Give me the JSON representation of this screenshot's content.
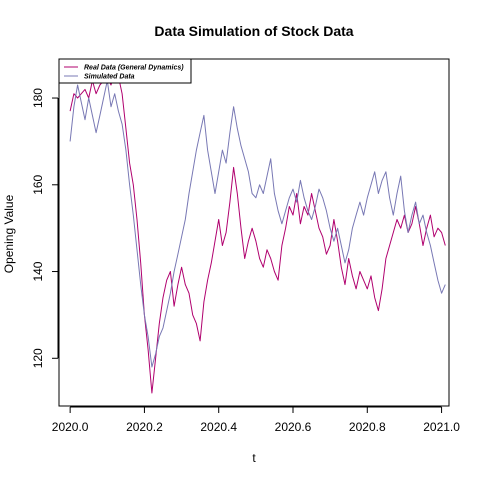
{
  "chart_data": {
    "type": "line",
    "title": "Data Simulation of Stock Data",
    "xlabel": "t",
    "ylabel": "Opening Value",
    "xlim": [
      2019.97,
      2021.02
    ],
    "ylim": [
      109,
      189
    ],
    "xticks": [
      {
        "value": 2020.0,
        "label": "2020.0"
      },
      {
        "value": 2020.2,
        "label": "2020.2"
      },
      {
        "value": 2020.4,
        "label": "2020.4"
      },
      {
        "value": 2020.6,
        "label": "2020.6"
      },
      {
        "value": 2020.8,
        "label": "2020.8"
      },
      {
        "value": 2021.0,
        "label": "2021.0"
      }
    ],
    "yticks": [
      {
        "value": 120,
        "label": "120"
      },
      {
        "value": 140,
        "label": "140"
      },
      {
        "value": 160,
        "label": "160"
      },
      {
        "value": 180,
        "label": "180"
      }
    ],
    "grid": false,
    "legend_position": "top-left",
    "series": [
      {
        "name": "Real Data (General Dynamics)",
        "color": "#b0006e",
        "points": [
          [
            2020.0,
            177
          ],
          [
            2020.01,
            181
          ],
          [
            2020.02,
            180
          ],
          [
            2020.03,
            181
          ],
          [
            2020.04,
            182
          ],
          [
            2020.05,
            180
          ],
          [
            2020.06,
            184
          ],
          [
            2020.07,
            181
          ],
          [
            2020.08,
            183
          ],
          [
            2020.09,
            184
          ],
          [
            2020.1,
            185
          ],
          [
            2020.11,
            183
          ],
          [
            2020.12,
            186
          ],
          [
            2020.13,
            185
          ],
          [
            2020.14,
            181
          ],
          [
            2020.15,
            173
          ],
          [
            2020.16,
            165
          ],
          [
            2020.17,
            160
          ],
          [
            2020.18,
            152
          ],
          [
            2020.19,
            142
          ],
          [
            2020.2,
            130
          ],
          [
            2020.21,
            122
          ],
          [
            2020.22,
            112
          ],
          [
            2020.23,
            120
          ],
          [
            2020.24,
            128
          ],
          [
            2020.25,
            134
          ],
          [
            2020.26,
            138
          ],
          [
            2020.27,
            140
          ],
          [
            2020.28,
            132
          ],
          [
            2020.29,
            137
          ],
          [
            2020.3,
            141
          ],
          [
            2020.31,
            137
          ],
          [
            2020.32,
            135
          ],
          [
            2020.33,
            130
          ],
          [
            2020.34,
            128
          ],
          [
            2020.35,
            124
          ],
          [
            2020.36,
            133
          ],
          [
            2020.37,
            138
          ],
          [
            2020.38,
            142
          ],
          [
            2020.39,
            147
          ],
          [
            2020.4,
            152
          ],
          [
            2020.41,
            146
          ],
          [
            2020.42,
            149
          ],
          [
            2020.43,
            156
          ],
          [
            2020.44,
            164
          ],
          [
            2020.45,
            158
          ],
          [
            2020.46,
            150
          ],
          [
            2020.47,
            143
          ],
          [
            2020.48,
            147
          ],
          [
            2020.49,
            150
          ],
          [
            2020.5,
            147
          ],
          [
            2020.51,
            143
          ],
          [
            2020.52,
            141
          ],
          [
            2020.53,
            145
          ],
          [
            2020.54,
            143
          ],
          [
            2020.55,
            140
          ],
          [
            2020.56,
            138
          ],
          [
            2020.57,
            146
          ],
          [
            2020.58,
            150
          ],
          [
            2020.59,
            155
          ],
          [
            2020.6,
            153
          ],
          [
            2020.61,
            158
          ],
          [
            2020.62,
            151
          ],
          [
            2020.63,
            155
          ],
          [
            2020.64,
            153
          ],
          [
            2020.65,
            158
          ],
          [
            2020.66,
            154
          ],
          [
            2020.67,
            150
          ],
          [
            2020.68,
            148
          ],
          [
            2020.69,
            144
          ],
          [
            2020.7,
            146
          ],
          [
            2020.71,
            152
          ],
          [
            2020.72,
            147
          ],
          [
            2020.73,
            141
          ],
          [
            2020.74,
            137
          ],
          [
            2020.75,
            143
          ],
          [
            2020.76,
            139
          ],
          [
            2020.77,
            136
          ],
          [
            2020.78,
            140
          ],
          [
            2020.79,
            138
          ],
          [
            2020.8,
            136
          ],
          [
            2020.81,
            139
          ],
          [
            2020.82,
            134
          ],
          [
            2020.83,
            131
          ],
          [
            2020.84,
            136
          ],
          [
            2020.85,
            143
          ],
          [
            2020.86,
            146
          ],
          [
            2020.87,
            149
          ],
          [
            2020.88,
            152
          ],
          [
            2020.89,
            150
          ],
          [
            2020.9,
            153
          ],
          [
            2020.91,
            149
          ],
          [
            2020.92,
            151
          ],
          [
            2020.93,
            155
          ],
          [
            2020.94,
            151
          ],
          [
            2020.95,
            146
          ],
          [
            2020.96,
            150
          ],
          [
            2020.97,
            153
          ],
          [
            2020.98,
            148
          ],
          [
            2020.99,
            150
          ],
          [
            2021.0,
            149
          ],
          [
            2021.01,
            146
          ]
        ]
      },
      {
        "name": "Simulated Data",
        "color": "#7878b4",
        "points": [
          [
            2020.0,
            170
          ],
          [
            2020.01,
            178
          ],
          [
            2020.02,
            183
          ],
          [
            2020.03,
            179
          ],
          [
            2020.04,
            175
          ],
          [
            2020.05,
            180
          ],
          [
            2020.06,
            176
          ],
          [
            2020.07,
            172
          ],
          [
            2020.08,
            176
          ],
          [
            2020.09,
            180
          ],
          [
            2020.1,
            184
          ],
          [
            2020.11,
            178
          ],
          [
            2020.12,
            181
          ],
          [
            2020.13,
            177
          ],
          [
            2020.14,
            174
          ],
          [
            2020.15,
            168
          ],
          [
            2020.16,
            160
          ],
          [
            2020.17,
            153
          ],
          [
            2020.18,
            145
          ],
          [
            2020.19,
            137
          ],
          [
            2020.2,
            130
          ],
          [
            2020.21,
            125
          ],
          [
            2020.22,
            118
          ],
          [
            2020.23,
            121
          ],
          [
            2020.24,
            125
          ],
          [
            2020.25,
            127
          ],
          [
            2020.26,
            131
          ],
          [
            2020.27,
            135
          ],
          [
            2020.28,
            140
          ],
          [
            2020.29,
            144
          ],
          [
            2020.3,
            148
          ],
          [
            2020.31,
            152
          ],
          [
            2020.32,
            158
          ],
          [
            2020.33,
            163
          ],
          [
            2020.34,
            168
          ],
          [
            2020.35,
            172
          ],
          [
            2020.36,
            176
          ],
          [
            2020.37,
            168
          ],
          [
            2020.38,
            163
          ],
          [
            2020.39,
            158
          ],
          [
            2020.4,
            163
          ],
          [
            2020.41,
            168
          ],
          [
            2020.42,
            165
          ],
          [
            2020.43,
            172
          ],
          [
            2020.44,
            178
          ],
          [
            2020.45,
            173
          ],
          [
            2020.46,
            169
          ],
          [
            2020.47,
            166
          ],
          [
            2020.48,
            163
          ],
          [
            2020.49,
            158
          ],
          [
            2020.5,
            157
          ],
          [
            2020.51,
            160
          ],
          [
            2020.52,
            158
          ],
          [
            2020.53,
            162
          ],
          [
            2020.54,
            166
          ],
          [
            2020.55,
            158
          ],
          [
            2020.56,
            154
          ],
          [
            2020.57,
            151
          ],
          [
            2020.58,
            154
          ],
          [
            2020.59,
            157
          ],
          [
            2020.6,
            159
          ],
          [
            2020.61,
            156
          ],
          [
            2020.62,
            161
          ],
          [
            2020.63,
            157
          ],
          [
            2020.64,
            154
          ],
          [
            2020.65,
            152
          ],
          [
            2020.66,
            155
          ],
          [
            2020.67,
            159
          ],
          [
            2020.68,
            157
          ],
          [
            2020.69,
            154
          ],
          [
            2020.7,
            150
          ],
          [
            2020.71,
            147
          ],
          [
            2020.72,
            150
          ],
          [
            2020.73,
            146
          ],
          [
            2020.74,
            142
          ],
          [
            2020.75,
            145
          ],
          [
            2020.76,
            150
          ],
          [
            2020.77,
            153
          ],
          [
            2020.78,
            156
          ],
          [
            2020.79,
            153
          ],
          [
            2020.8,
            157
          ],
          [
            2020.81,
            160
          ],
          [
            2020.82,
            163
          ],
          [
            2020.83,
            158
          ],
          [
            2020.84,
            161
          ],
          [
            2020.85,
            163
          ],
          [
            2020.86,
            157
          ],
          [
            2020.87,
            153
          ],
          [
            2020.88,
            158
          ],
          [
            2020.89,
            162
          ],
          [
            2020.9,
            154
          ],
          [
            2020.91,
            149
          ],
          [
            2020.92,
            153
          ],
          [
            2020.93,
            156
          ],
          [
            2020.94,
            151
          ],
          [
            2020.95,
            153
          ],
          [
            2020.96,
            149
          ],
          [
            2020.97,
            146
          ],
          [
            2020.98,
            142
          ],
          [
            2020.99,
            138
          ],
          [
            2021.0,
            135
          ],
          [
            2021.01,
            137
          ]
        ]
      }
    ]
  }
}
